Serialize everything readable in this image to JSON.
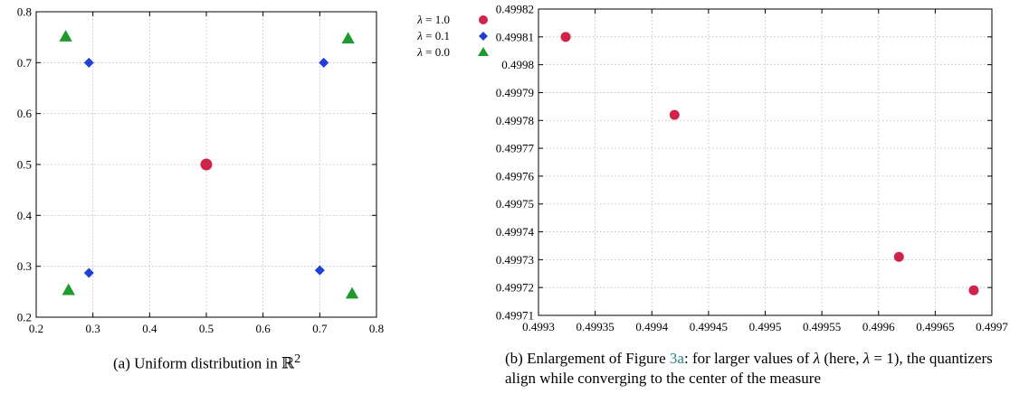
{
  "chart_data": [
    {
      "type": "scatter",
      "title": "",
      "xlabel": "",
      "ylabel": "",
      "xlim": [
        0.2,
        0.8
      ],
      "ylim": [
        0.2,
        0.8
      ],
      "x_ticks": [
        "0.2",
        "0.3",
        "0.4",
        "0.5",
        "0.6",
        "0.7",
        "0.8"
      ],
      "y_ticks": [
        "0.2",
        "0.3",
        "0.4",
        "0.5",
        "0.6",
        "0.7",
        "0.8"
      ],
      "grid": true,
      "legend_position": "outside-right",
      "series": [
        {
          "name": "λ = 1.0",
          "marker": "circle",
          "color": "#d0234a",
          "points": [
            [
              0.5,
              0.5
            ]
          ]
        },
        {
          "name": "λ = 0.1",
          "marker": "diamond",
          "color": "#1f3fd6",
          "points": [
            [
              0.293,
              0.7
            ],
            [
              0.707,
              0.7
            ],
            [
              0.293,
              0.287
            ],
            [
              0.7,
              0.292
            ]
          ]
        },
        {
          "name": "λ = 0.0",
          "marker": "triangle",
          "color": "#1f9a2e",
          "points": [
            [
              0.252,
              0.752
            ],
            [
              0.75,
              0.748
            ],
            [
              0.257,
              0.254
            ],
            [
              0.757,
              0.247
            ]
          ]
        }
      ]
    },
    {
      "type": "scatter",
      "title": "",
      "xlabel": "",
      "ylabel": "",
      "xlim": [
        0.4993,
        0.4997
      ],
      "ylim": [
        0.49971,
        0.49982
      ],
      "x_ticks": [
        "0.4993",
        "0.49935",
        "0.4994",
        "0.49945",
        "0.4995",
        "0.49955",
        "0.4996",
        "0.49965",
        "0.4997"
      ],
      "y_ticks": [
        "0.49971",
        "0.49972",
        "0.49973",
        "0.49974",
        "0.49975",
        "0.49976",
        "0.49977",
        "0.49978",
        "0.49979",
        "0.4998",
        "0.49981",
        "0.49982"
      ],
      "grid": true,
      "series": [
        {
          "name": "λ = 1.0",
          "marker": "circle",
          "color": "#d0234a",
          "points": [
            [
              0.499324,
              0.49981
            ],
            [
              0.49942,
              0.499782
            ],
            [
              0.499618,
              0.499731
            ],
            [
              0.499684,
              0.499719
            ]
          ]
        }
      ]
    }
  ],
  "legend": {
    "items": [
      {
        "prefix": "λ",
        "rest": " = 1.0"
      },
      {
        "prefix": "λ",
        "rest": " = 0.1"
      },
      {
        "prefix": "λ",
        "rest": " = 0.0"
      }
    ]
  },
  "captions": {
    "a_text": "(a) Uniform distribution in ℝ",
    "a_sup": "2",
    "b_part1": "(b) Enlargement of Figure ",
    "b_ref": "3a",
    "b_part2": ": for larger values of ",
    "b_lambda1": "λ",
    "b_part3": " (here, ",
    "b_lambda2": "λ",
    "b_part4": " = 1), the quantizers align while converging to the center of the measure"
  }
}
